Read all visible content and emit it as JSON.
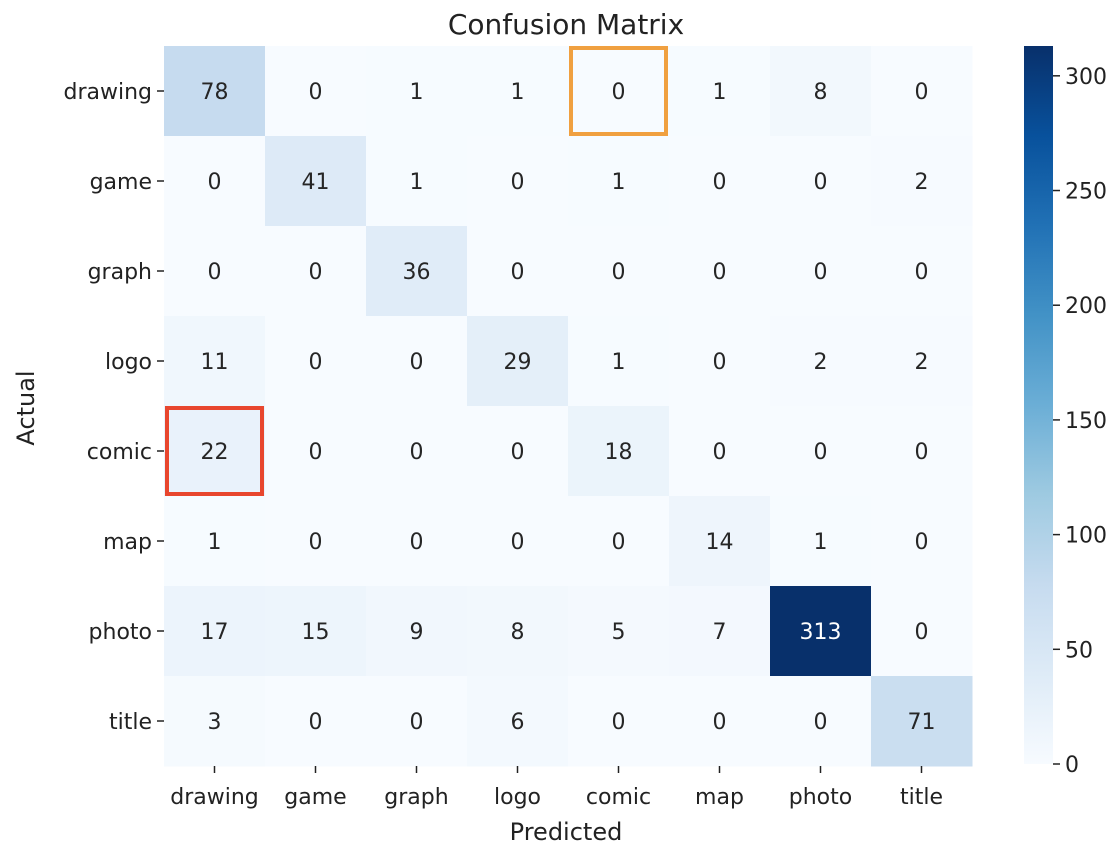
{
  "chart_data": {
    "type": "heatmap",
    "title": "Confusion Matrix",
    "xlabel": "Predicted",
    "ylabel": "Actual",
    "x_categories": [
      "drawing",
      "game",
      "graph",
      "logo",
      "comic",
      "map",
      "photo",
      "title"
    ],
    "y_categories": [
      "drawing",
      "game",
      "graph",
      "logo",
      "comic",
      "map",
      "photo",
      "title"
    ],
    "values": [
      [
        78,
        0,
        1,
        1,
        0,
        1,
        8,
        0
      ],
      [
        0,
        41,
        1,
        0,
        1,
        0,
        0,
        2
      ],
      [
        0,
        0,
        36,
        0,
        0,
        0,
        0,
        0
      ],
      [
        11,
        0,
        0,
        29,
        1,
        0,
        2,
        2
      ],
      [
        22,
        0,
        0,
        0,
        18,
        0,
        0,
        0
      ],
      [
        1,
        0,
        0,
        0,
        0,
        14,
        1,
        0
      ],
      [
        17,
        15,
        9,
        8,
        5,
        7,
        313,
        0
      ],
      [
        3,
        0,
        0,
        6,
        0,
        0,
        0,
        71
      ]
    ],
    "colorbar": {
      "min": 0,
      "max": 313,
      "ticks": [
        0,
        50,
        100,
        150,
        200,
        250,
        300
      ]
    },
    "colormap": "Blues",
    "highlights": [
      {
        "row": 0,
        "col": 4,
        "color": "#f0a040"
      },
      {
        "row": 4,
        "col": 0,
        "color": "#e8462e"
      }
    ]
  }
}
